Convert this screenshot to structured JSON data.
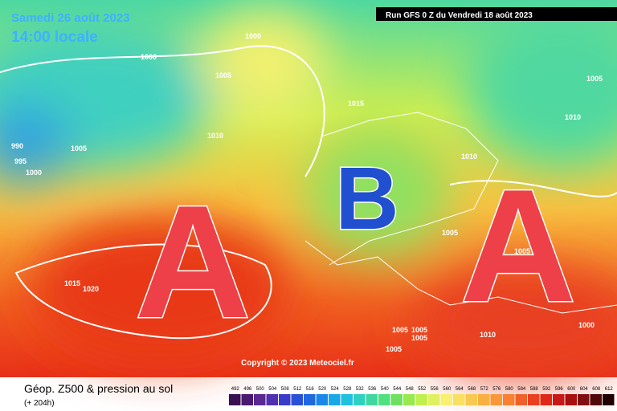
{
  "header": {
    "date": "Samedi 26 août 2023",
    "time": "14:00 locale",
    "run": "Run GFS 0 Z du Vendredi 18 août 2023"
  },
  "map": {
    "centers": [
      "A",
      "B",
      "A"
    ],
    "isobar_labels": [
      "1000",
      "1000",
      "1005",
      "1015",
      "1010",
      "990",
      "995",
      "1000",
      "1005",
      "1010",
      "1010",
      "1005",
      "1005",
      "1015",
      "1020",
      "1005",
      "1005",
      "1005",
      "1005",
      "1010",
      "1000",
      "1005"
    ],
    "copyright": "Copyright © 2023 Meteociel.fr"
  },
  "footer": {
    "title": "Géop. Z500 & pression au sol",
    "subtitle": "(+ 204h)",
    "scale": [
      "492",
      "496",
      "500",
      "504",
      "508",
      "512",
      "516",
      "520",
      "524",
      "528",
      "532",
      "536",
      "540",
      "544",
      "548",
      "552",
      "556",
      "560",
      "564",
      "568",
      "572",
      "576",
      "580",
      "584",
      "588",
      "592",
      "596",
      "600",
      "604",
      "608",
      "612"
    ],
    "scale_colors": [
      "#3a1050",
      "#4a1a70",
      "#5a2890",
      "#5030b0",
      "#3a3cc8",
      "#2a50d8",
      "#2068e0",
      "#1a88e8",
      "#18a8e8",
      "#20c0e0",
      "#30d0c0",
      "#40d8a0",
      "#50e080",
      "#70e060",
      "#98e850",
      "#c0f050",
      "#e0f060",
      "#f8f070",
      "#f8e060",
      "#f8c850",
      "#f8b040",
      "#f89838",
      "#f88030",
      "#f06028",
      "#e84020",
      "#e02818",
      "#c81818",
      "#a81010",
      "#801010",
      "#500808",
      "#200000"
    ]
  }
}
